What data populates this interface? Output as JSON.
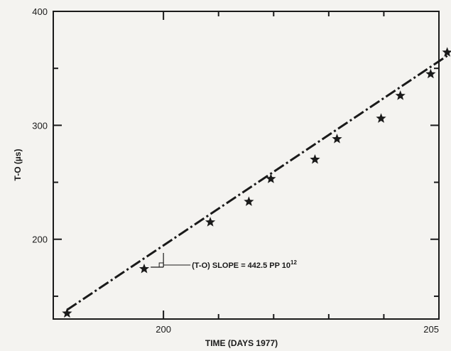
{
  "chart_data": {
    "type": "scatter",
    "xlabel": "TIME (DAYS 1977)",
    "ylabel": "T-O (µs)",
    "xlim": [
      198.0,
      205.0
    ],
    "ylim": [
      130,
      400
    ],
    "x_ticks": [
      200,
      205
    ],
    "x_minor_ticks": [
      201,
      202,
      203,
      204
    ],
    "y_ticks": [
      200,
      300,
      400
    ],
    "y_minor_ticks": [
      150,
      250,
      350
    ],
    "grid": false,
    "series": [
      {
        "marker": "star",
        "x": [
          198.25,
          199.65,
          200.85,
          201.55,
          201.95,
          202.75,
          203.15,
          203.95,
          204.3,
          204.85,
          205.15
        ],
        "y": [
          135,
          174,
          215,
          233,
          253,
          270,
          288,
          306,
          326,
          345,
          364
        ]
      }
    ],
    "fit_line": {
      "style": "dash-dot",
      "x": [
        198.25,
        205.15
      ],
      "y": [
        138,
        361
      ]
    },
    "annotation": {
      "text": "(T-O) SLOPE = 442.5 PP 10",
      "superscript": "12",
      "anchor": {
        "x": 200.0,
        "y": 183
      }
    }
  }
}
